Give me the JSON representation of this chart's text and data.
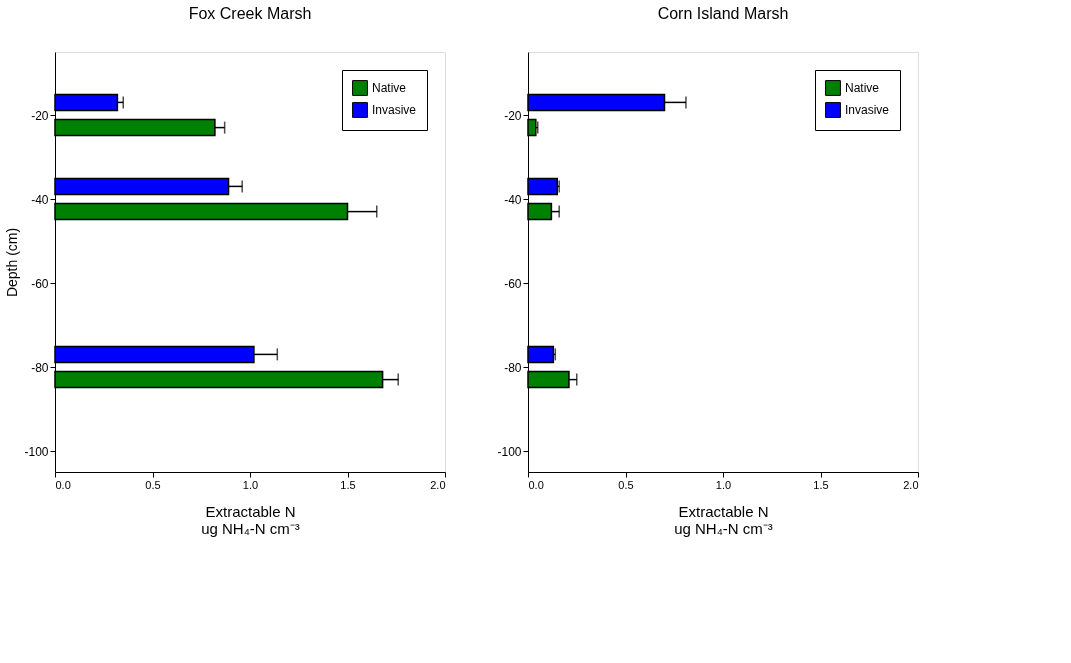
{
  "chart_data": [
    {
      "type": "bar",
      "orientation": "horizontal",
      "title": "Fox Creek Marsh",
      "xlabel": "Extractable N\nug NH₄-N cm⁻³",
      "ylabel": "Depth (cm)",
      "legend": "top right",
      "xlim": [
        0,
        2
      ],
      "xticks": [
        {
          "value": 0,
          "label": "0.0"
        },
        {
          "value": 0.5,
          "label": "0.5"
        },
        {
          "value": 1,
          "label": "1.0"
        },
        {
          "value": 1.5,
          "label": "1.5"
        },
        {
          "value": 2,
          "label": "2.0"
        }
      ],
      "ylim": [
        -105,
        -5
      ],
      "yticks": [
        -20,
        -40,
        -60,
        -80,
        -100
      ],
      "series": [
        {
          "name": "Native",
          "color": "#008000",
          "x": [
            -23,
            -43,
            -83
          ],
          "values": [
            0.82,
            1.5,
            1.68
          ],
          "errors": [
            [
              0.82,
              0.87
            ],
            [
              1.5,
              1.65
            ],
            [
              1.68,
              1.76
            ]
          ]
        },
        {
          "name": "Invasive",
          "color": "#0000ff",
          "x": [
            -17,
            -37,
            -77
          ],
          "values": [
            0.32,
            0.89,
            1.02
          ],
          "errors": [
            [
              0.32,
              0.35
            ],
            [
              0.89,
              0.96
            ],
            [
              1.02,
              1.14
            ]
          ]
        }
      ]
    },
    {
      "type": "bar",
      "orientation": "horizontal",
      "title": "Corn Island Marsh",
      "xlabel": "Extractable N\nug NH₄-N cm⁻³",
      "legend": "top right",
      "xlim": [
        0,
        2
      ],
      "xticks": [
        {
          "value": 0,
          "label": "0.0"
        },
        {
          "value": 0.5,
          "label": "0.5"
        },
        {
          "value": 1,
          "label": "1.0"
        },
        {
          "value": 1.5,
          "label": "1.5"
        },
        {
          "value": 2,
          "label": "2.0"
        }
      ],
      "ylim": [
        -105,
        -5
      ],
      "yticks": [
        -20,
        -40,
        -60,
        -80,
        -100
      ],
      "series": [
        {
          "name": "Native",
          "color": "#008000",
          "x": [
            -23,
            -43,
            -83
          ],
          "values": [
            0.04,
            0.12,
            0.21
          ],
          "errors": [
            [
              0.04,
              0.05
            ],
            [
              0.12,
              0.16
            ],
            [
              0.21,
              0.25
            ]
          ]
        },
        {
          "name": "Invasive",
          "color": "#0000ff",
          "x": [
            -17,
            -37,
            -77
          ],
          "values": [
            0.7,
            0.15,
            0.13
          ],
          "errors": [
            [
              0.7,
              0.81
            ],
            [
              0.15,
              0.16
            ],
            [
              0.13,
              0.14
            ]
          ]
        }
      ]
    }
  ]
}
